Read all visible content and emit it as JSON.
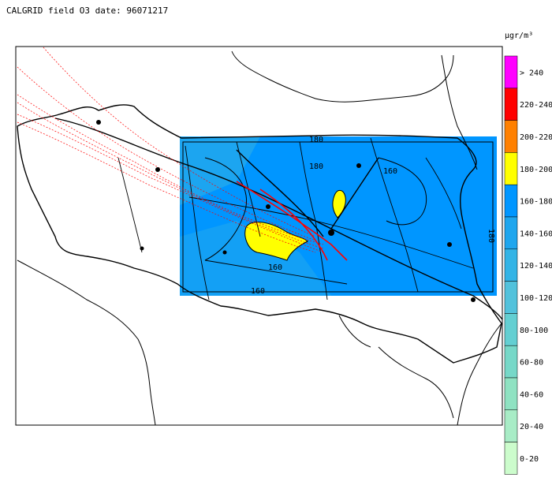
{
  "title": "CALGRID field O3 date: 96071217",
  "unit": "µgr/m³",
  "contour_labels": [
    "180",
    "180",
    "160",
    "160",
    "160",
    "180"
  ],
  "legend": [
    {
      "label": "> 240",
      "color": "#ff00ff"
    },
    {
      "label": "220-240",
      "color": "#ff0000"
    },
    {
      "label": "200-220",
      "color": "#ff8000"
    },
    {
      "label": "180-200",
      "color": "#ffff00"
    },
    {
      "label": "160-180",
      "color": "#0096ff"
    },
    {
      "label": "140-160",
      "color": "#1fa6ee"
    },
    {
      "label": "120-140",
      "color": "#33b4e6"
    },
    {
      "label": "100-120",
      "color": "#52c2dc"
    },
    {
      "label": "80-100",
      "color": "#63cfd2"
    },
    {
      "label": "60-80",
      "color": "#76d8c8"
    },
    {
      "label": "40-60",
      "color": "#8fe2c2"
    },
    {
      "label": "20-40",
      "color": "#a8ecc6"
    },
    {
      "label": "0-20",
      "color": "#ccfccc"
    }
  ]
}
